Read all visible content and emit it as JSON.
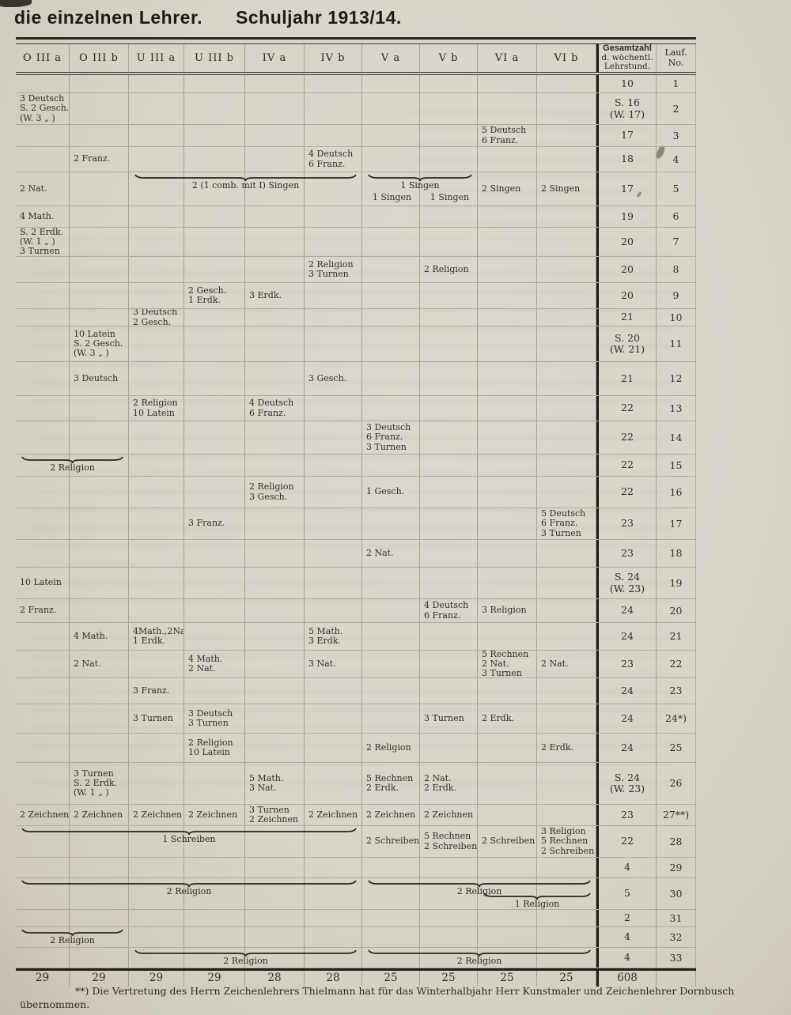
{
  "page": {
    "title_left": "die einzelnen Lehrer.",
    "title_right": "Schuljahr 1913/14."
  },
  "table": {
    "class_headers": [
      "O III a",
      "O III b",
      "U III a",
      "U III b",
      "IV a",
      "IV b",
      "V a",
      "V b",
      "VI a",
      "VI b"
    ],
    "total_header": {
      "line1": "Gesamtzahl",
      "line2": "d. wöchentl.",
      "line3": "Lehrstund."
    },
    "lauf_header": {
      "line1": "Lauf.",
      "line2": "No."
    },
    "rows": [
      {
        "no": "1",
        "total": "10",
        "c": {}
      },
      {
        "no": "2",
        "total": "S. 16\n(W. 17)",
        "c": {
          "0": "3 Deutsch\nS. 2 Gesch.\n(W. 3  „  )"
        }
      },
      {
        "no": "3",
        "total": "17",
        "c": {
          "8": "5 Deutsch\n6 Franz."
        }
      },
      {
        "no": "4",
        "total": "18",
        "c": {
          "1": "2 Franz.",
          "5": "4 Deutsch\n6 Franz."
        }
      },
      {
        "no": "5",
        "total": "17",
        "c": {
          "0": "2 Nat.",
          "6": "1 Singen",
          "7": "1 Singen",
          "8": "2 Singen",
          "9": "2 Singen"
        },
        "braces": [
          {
            "from": 2,
            "to": 5,
            "label": "2 (1 comb. mit I) Singen"
          },
          {
            "from": 6,
            "to": 7,
            "label": "1 Singen"
          }
        ]
      },
      {
        "no": "6",
        "total": "19",
        "c": {
          "0": "4 Math."
        }
      },
      {
        "no": "7",
        "total": "20",
        "c": {
          "0": "S. 2 Erdk.\n(W. 1  „  )\n3 Turnen"
        }
      },
      {
        "no": "8",
        "total": "20",
        "c": {
          "5": "2 Religion\n3 Turnen",
          "7": "2 Religion"
        }
      },
      {
        "no": "9",
        "total": "20",
        "c": {
          "3": "2 Gesch.\n1 Erdk.",
          "4": "3 Erdk."
        }
      },
      {
        "no": "10",
        "total": "21",
        "c": {
          "2": "3 Deutsch\n2 Gesch."
        }
      },
      {
        "no": "11",
        "total": "S. 20\n(W. 21)",
        "c": {
          "1": "10 Latein\nS. 2 Gesch.\n(W. 3  „  )"
        }
      },
      {
        "no": "12",
        "total": "21",
        "c": {
          "1": "3 Deutsch",
          "5": "3 Gesch."
        }
      },
      {
        "no": "13",
        "total": "22",
        "c": {
          "2": "2 Religion\n10 Latein",
          "4": "4 Deutsch\n6 Franz."
        }
      },
      {
        "no": "14",
        "total": "22",
        "c": {
          "6": "3 Deutsch\n6 Franz.\n3 Turnen"
        }
      },
      {
        "no": "15",
        "total": "22",
        "c": {},
        "braces": [
          {
            "from": 0,
            "to": 1,
            "label": "2 Religion"
          }
        ]
      },
      {
        "no": "16",
        "total": "22",
        "c": {
          "4": "2 Religion\n3 Gesch.",
          "6": "1 Gesch."
        }
      },
      {
        "no": "17",
        "total": "23",
        "c": {
          "3": "3 Franz.",
          "9": "5 Deutsch\n6 Franz.\n3 Turnen"
        }
      },
      {
        "no": "18",
        "total": "23",
        "c": {
          "6": "2 Nat."
        }
      },
      {
        "no": "19",
        "total": "S. 24\n(W. 23)",
        "c": {
          "0": "10 Latein"
        }
      },
      {
        "no": "20",
        "total": "24",
        "c": {
          "0": "2 Franz.",
          "7": "4 Deutsch\n6 Franz.",
          "8": "3 Religion"
        }
      },
      {
        "no": "21",
        "total": "24",
        "c": {
          "1": "4 Math.",
          "2": "4Math.,2Nat.\n1 Erdk.",
          "5": "5 Math.\n3 Erdk."
        }
      },
      {
        "no": "22",
        "total": "23",
        "c": {
          "1": "2 Nat.",
          "3": "4 Math.\n2 Nat.",
          "5": "3 Nat.",
          "8": "5 Rechnen\n2 Nat.\n3 Turnen",
          "9": "2 Nat."
        }
      },
      {
        "no": "23",
        "total": "24",
        "c": {
          "2": "3 Franz."
        }
      },
      {
        "no": "24*)",
        "total": "24",
        "c": {
          "2": "3 Turnen",
          "3": "3 Deutsch\n3 Turnen",
          "7": "3 Turnen",
          "8": "2 Erdk."
        }
      },
      {
        "no": "25",
        "total": "24",
        "c": {
          "3": "2 Religion\n10 Latein",
          "6": "2 Religion",
          "9": "2 Erdk."
        }
      },
      {
        "no": "26",
        "total": "S. 24\n(W. 23)",
        "c": {
          "1": "3 Turnen\nS. 2 Erdk.\n(W. 1  „  )",
          "4": "5 Math.\n3 Nat.",
          "6": "5 Rechnen\n2 Erdk.",
          "7": "2 Nat.\n2 Erdk."
        }
      },
      {
        "no": "27**)",
        "total": "23",
        "c": {
          "0": "2 Zeichnen",
          "1": "2 Zeichnen",
          "2": "2 Zeichnen",
          "3": "2 Zeichnen",
          "4": "3 Turnen\n2 Zeichnen",
          "5": "2 Zeichnen",
          "6": "2 Zeichnen",
          "7": "2 Zeichnen"
        }
      },
      {
        "no": "28",
        "total": "22",
        "c": {
          "6": "2 Schreiben",
          "7": "5 Rechnen\n2 Schreiben",
          "8": "2 Schreiben",
          "9": "3 Religion\n5 Rechnen\n2 Schreiben"
        },
        "braces": [
          {
            "from": 0,
            "to": 5,
            "label": "1 Schreiben"
          }
        ]
      },
      {
        "no": "29",
        "total": "4",
        "c": {}
      },
      {
        "no": "30",
        "total": "5",
        "c": {},
        "braces": [
          {
            "from": 0,
            "to": 5,
            "label": "2 Religion"
          },
          {
            "from": 6,
            "to": 9,
            "label": "2 Religion"
          },
          {
            "from": 8,
            "to": 9,
            "label": "1 Religion",
            "level": 1
          }
        ]
      },
      {
        "no": "31",
        "total": "2",
        "c": {}
      },
      {
        "no": "32",
        "total": "4",
        "c": {},
        "braces": [
          {
            "from": 0,
            "to": 1,
            "label": "2 Religion"
          }
        ]
      },
      {
        "no": "33",
        "total": "4",
        "c": {},
        "braces": [
          {
            "from": 2,
            "to": 5,
            "label": "2 Religion"
          },
          {
            "from": 6,
            "to": 9,
            "label": "2 Religion"
          }
        ]
      }
    ],
    "column_sums": [
      "29",
      "29",
      "29",
      "29",
      "28",
      "28",
      "25",
      "25",
      "25",
      "25"
    ],
    "grand_total": "608"
  },
  "footnote": {
    "marker": "**)",
    "text": "Die Vertretung des Herrn Zeichenlehrers Thielmann hat für das Winterhalbjahr Herr Kunstmaler und Zeichenlehrer Dornbusch übernommen."
  }
}
